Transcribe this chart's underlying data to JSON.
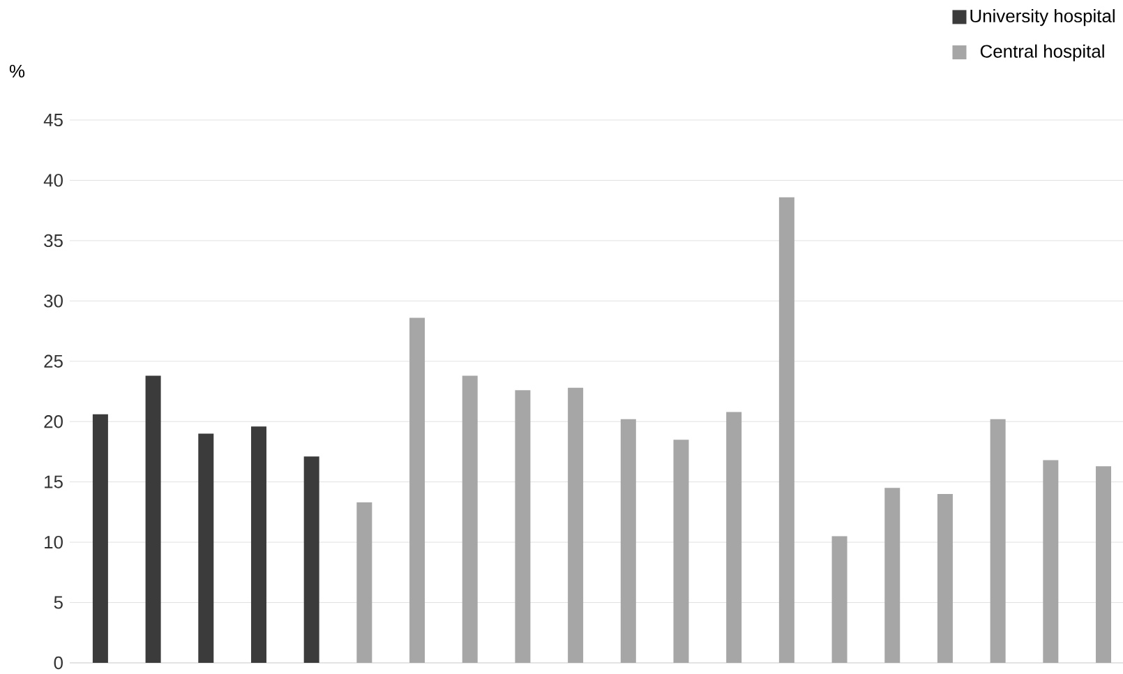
{
  "chart_data": {
    "type": "bar",
    "ylabel": "%",
    "categories": [
      null,
      null,
      null,
      null,
      null,
      null,
      null,
      null,
      null,
      null,
      null,
      null,
      null,
      null,
      null,
      null,
      null,
      null,
      null,
      null
    ],
    "series": [
      {
        "name": "University hospital",
        "color": "#3b3b3b",
        "values": [
          20.6,
          23.8,
          19.0,
          19.6,
          17.1,
          null,
          null,
          null,
          null,
          null,
          null,
          null,
          null,
          null,
          null,
          null,
          null,
          null,
          null,
          null
        ]
      },
      {
        "name": "Central hospital",
        "color": "#a6a6a6",
        "values": [
          null,
          null,
          null,
          null,
          null,
          13.3,
          28.6,
          23.8,
          22.6,
          22.8,
          20.2,
          18.5,
          20.8,
          38.6,
          10.5,
          14.5,
          14.0,
          20.2,
          16.8,
          16.3
        ]
      }
    ],
    "ylim": [
      0,
      45
    ],
    "yticks": [
      0,
      5,
      10,
      15,
      20,
      25,
      30,
      35,
      40,
      45
    ],
    "grid": "y",
    "legend": "top right",
    "tick_labels": "y"
  }
}
